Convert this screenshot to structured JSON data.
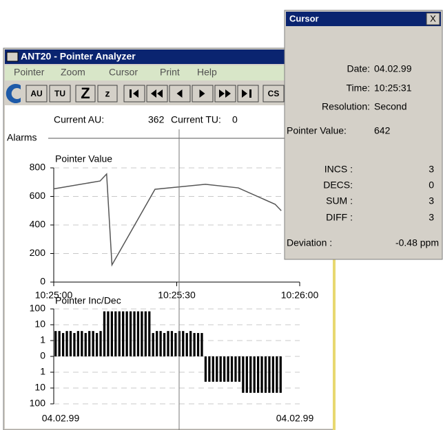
{
  "window": {
    "title": "ANT20 - Pointer Analyzer"
  },
  "menu": [
    "Pointer",
    "Zoom",
    "Cursor",
    "Print",
    "Help"
  ],
  "toolbar": [
    "AU",
    "TU",
    "Z",
    "z",
    "CS"
  ],
  "status": {
    "au_label": "Current AU:",
    "au_value": "362",
    "tu_label": "Current TU:",
    "tu_value": "0"
  },
  "alarms_label": "Alarms",
  "chart_data": [
    {
      "type": "line",
      "title": "Pointer Value",
      "color": "#555555",
      "x": [
        0,
        11.3,
        12.9,
        14.2,
        24.7,
        37,
        45,
        54,
        55.5
      ],
      "values": [
        653,
        708,
        757,
        120,
        650,
        685,
        660,
        545,
        500
      ],
      "xlim": [
        0,
        60
      ],
      "xticks": [
        {
          "value": 0,
          "label": "10:25:00"
        },
        {
          "value": 30,
          "label": "10:25:30"
        },
        {
          "value": 60,
          "label": "10:26:00"
        }
      ],
      "ylim": [
        0,
        800
      ],
      "yticks": [
        0,
        200,
        400,
        600,
        800
      ],
      "grid": true
    },
    {
      "type": "bar",
      "title": "Pointer Inc/Dec",
      "color": "#000000",
      "scale": "symlog",
      "values": [
        4,
        4,
        3,
        4,
        4,
        3,
        4,
        4,
        3,
        4,
        4,
        3,
        4,
        70,
        70,
        70,
        70,
        70,
        70,
        70,
        70,
        70,
        70,
        70,
        70,
        70,
        3,
        4,
        4,
        3,
        4,
        4,
        3,
        4,
        4,
        3,
        4,
        3,
        3,
        3,
        -4,
        -4,
        -4,
        -4,
        -4,
        -4,
        -4,
        -4,
        -4,
        -4,
        -20,
        -20,
        -20,
        -20,
        -20,
        -20,
        -20,
        -20,
        -20,
        -20,
        -20
      ],
      "ylim": [
        -100,
        100
      ],
      "yticks": [
        100,
        10,
        1,
        0,
        {
          "value": -1,
          "label": "1"
        },
        {
          "value": -10,
          "label": "10"
        },
        {
          "value": -100,
          "label": "100"
        }
      ],
      "x_labels": [
        "04.02.99",
        "04.02.99"
      ],
      "grid": true
    }
  ],
  "dialog": {
    "title": "Cursor",
    "close": "X",
    "date_label": "Date:",
    "date": "04.02.99",
    "time_label": "Time:",
    "time": "10:25:31",
    "resolution_label": "Resolution:",
    "resolution": "Second",
    "pointer_label": "Pointer Value:",
    "pointer": "642",
    "counters": [
      {
        "label": "INCS :",
        "value": "3"
      },
      {
        "label": "DECS:",
        "value": "0"
      },
      {
        "label": "SUM :",
        "value": "3"
      },
      {
        "label": "DIFF :",
        "value": "3"
      }
    ],
    "deviation_label": "Deviation :",
    "deviation": "-0.48 ppm"
  }
}
